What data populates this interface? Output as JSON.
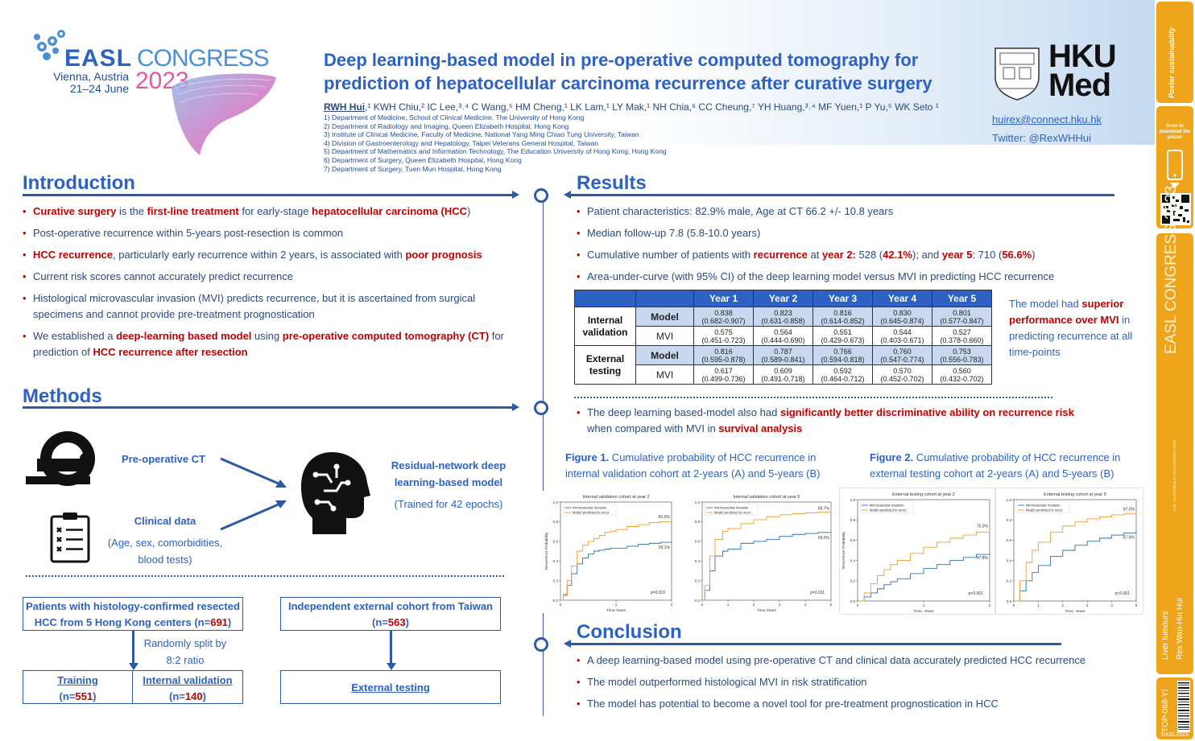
{
  "logo": {
    "brand": "EASL",
    "event": "CONGRESS",
    "city": "Vienna, Austria",
    "dates": "21–24 June",
    "year": "2023"
  },
  "title": "Deep learning-based model in pre-operative computed tomography for prediction of hepatocellular carcinoma recurrence after curative surgery",
  "authors": "RWH Hui,¹ KWH Chiu,² IC Lee,³⁴ C Wang,⁵ HM Cheng,¹ LK Lam,¹ LY Mak,¹ NH Chia,⁶ CC Cheung,⁷ YH Huang,³⁴ MF Yuen,¹ P Yu,⁵ WK Seto ¹",
  "first_author": "RWH Hui",
  "authors_rest": ",¹ KWH Chiu,² IC Lee,³˒⁴ C Wang,⁵ HM Cheng,¹ LK Lam,¹ LY Mak,¹ NH Chia,⁶ CC Cheung,⁷ YH Huang,³˒⁴ MF Yuen,¹ P Yu,⁵ WK Seto ¹",
  "affiliations": [
    "1) Department of Medicine, School of Clinical Medicine, The University of Hong Kong",
    "2) Department of Radiology and Imaging, Queen Elizabeth Hospital, Hong Kong",
    "3) Institute of Clinical Medicine, Faculty of Medicine, National Yang Ming Chiao Tung University, Taiwan",
    "4) Division of Gastroenterology and Hepatology, Taipei Veterans General Hospital, Taiwan",
    "5) Department of Mathematics and Information Technology, The Education University of Hong Kong, Hong Kong",
    "6) Department of Surgery, Queen Elizabeth Hospital, Hong Kong",
    "7) Department of Surgery, Tuen Mun Hospital, Hong Kong"
  ],
  "hku": {
    "line1": "HKU",
    "line2": "Med",
    "email": "huirex@connect.hku.hk",
    "twitter": "Twitter: @RexWHHui"
  },
  "introduction": {
    "heading": "Introduction",
    "b1": {
      "a": "Curative surgery",
      "b": " is the ",
      "c": "first-line treatment",
      "d": " for early-stage ",
      "e": "hepatocellular carcinoma (HCC",
      "f": ")"
    },
    "b2": "Post-operative recurrence within 5-years post-resection is common",
    "b3": {
      "a": "HCC recurrence",
      "b": ", particularly early recurrence within 2 years, is associated with ",
      "c": "poor prognosis"
    },
    "b4": "Current risk scores cannot accurately predict recurrence",
    "b5": "Histological microvascular invasion (MVI) predicts recurrence, but it is ascertained from surgical specimens and cannot provide pre-treatment prognostication",
    "b6": {
      "a": "We established a ",
      "b": "deep-learning based model",
      "c": " using ",
      "d": "pre-operative computed tomography (CT)",
      "e": " for prediction of ",
      "f": "HCC recurrence after resection"
    }
  },
  "methods": {
    "heading": "Methods",
    "ct": "Pre-operative CT",
    "clinical": "Clinical data",
    "clinical_detail_1": "(Age, sex, comorbidities,",
    "clinical_detail_2": "blood tests)",
    "model_1": "Residual-network deep",
    "model_2": "learning-based model",
    "model_3": "(Trained for 42 epochs)",
    "hk_box_1": "Patients with histology-confirmed resected",
    "hk_box_2a": "HCC from 5 Hong Kong centers (n=",
    "hk_box_2b": "691",
    "hk_box_2c": ")",
    "split_1": "Randomly split by",
    "split_2": "8:2 ratio",
    "training": "Training",
    "training_n_a": "(n=",
    "training_n_b": "551",
    "training_n_c": ")",
    "internal": "Internal validation",
    "internal_n_a": "(n=",
    "internal_n_b": "140",
    "internal_n_c": ")",
    "tw_box_1": "Independent external cohort from Taiwan",
    "tw_box_2a": "(n=",
    "tw_box_2b": "563",
    "tw_box_2c": ")",
    "external": "External testing"
  },
  "results": {
    "heading": "Results",
    "b1": "Patient characteristics: 82.9% male, Age at CT 66.2 +/- 10.8 years",
    "b2": "Median follow-up 7.8 (5.8-10.0 years)",
    "b3": {
      "a": "Cumulative number of patients with ",
      "b": "recurrence",
      "c": " at ",
      "d": "year 2:",
      "e": " 528 (",
      "f": "42.1%",
      "g": "); and ",
      "h": "year 5",
      "i": ": 710 (",
      "j": "56.6%",
      "k": ")"
    },
    "b4": "Area-under-curve (with 95% CI) of the deep learning model versus MVI in predicting HCC recurrence",
    "table": {
      "headers": [
        "Year 1",
        "Year 2",
        "Year 3",
        "Year 4",
        "Year 5"
      ],
      "internal_label_1": "Internal",
      "internal_label_2": "validation",
      "external_label_1": "External",
      "external_label_2": "testing",
      "model_label": "Model",
      "mvi_label": "MVI",
      "int_model": [
        [
          "0.838",
          "(0.682-0.907)"
        ],
        [
          "0.823",
          "(0.631-0.858)"
        ],
        [
          "0.816",
          "(0.614-0.852)"
        ],
        [
          "0.830",
          "(0.645-0.874)"
        ],
        [
          "0.801",
          "(0.577-0.847)"
        ]
      ],
      "int_mvi": [
        [
          "0.575",
          "(0.451-0.723)"
        ],
        [
          "0.564",
          "(0.444-0.690)"
        ],
        [
          "0.551",
          "(0.429-0.673)"
        ],
        [
          "0.544",
          "(0.403-0.671)"
        ],
        [
          "0.527",
          "(0.378-0.660)"
        ]
      ],
      "ext_model": [
        [
          "0.816",
          "(0.595-0.878)"
        ],
        [
          "0.787",
          "(0.589-0.841)"
        ],
        [
          "0.766",
          "(0.594-0.818)"
        ],
        [
          "0.760",
          "(0.547-0.774)"
        ],
        [
          "0.753",
          "(0.556-0.783)"
        ]
      ],
      "ext_mvi": [
        [
          "0.617",
          "(0.499-0.736)"
        ],
        [
          "0.609",
          "(0.491-0.718)"
        ],
        [
          "0.592",
          "(0.464-0.712)"
        ],
        [
          "0.570",
          "(0.452-0.702)"
        ],
        [
          "0.560",
          "(0.432-0.702)"
        ]
      ]
    },
    "superior": {
      "a": "The model had ",
      "b": "superior performance over MVI",
      "c": " in predicting recurrence at all time-points"
    },
    "b5": {
      "a": "The deep learning based-model also had ",
      "b": "significantly better discriminative ability on recurrence risk",
      "c": " when compared with MVI in ",
      "d": "survival analysis"
    },
    "fig1": {
      "label": "Figure 1.",
      "text": " Cumulative probability of HCC recurrence in internal validation cohort at 2-years (A) and 5-years (B)"
    },
    "fig2": {
      "label": "Figure 2.",
      "text": " Cumulative probability of HCC recurrence in external testing cohort at 2-years (A) and 5-years (B)"
    }
  },
  "conclusion": {
    "heading": "Conclusion",
    "b1": "A deep learning-based model using pre-operative CT and clinical data accurately predicted HCC recurrence",
    "b2": "The model outperformed histological MVI in risk stratification",
    "b3": "The model has potential to become a novel tool for pre-treatment prognostication in HCC"
  },
  "sidebar": {
    "poster_sust": "Poster sustainability",
    "scan": "Scan to download the poster",
    "congress": "EASL CONGRESS 2023",
    "tiny": "DOI: 10.1016/jhep.EASLCONGRESS.2023",
    "topic_1": "Liver tumours",
    "topic_2": "Rex Wan-Hin Hui",
    "code": "TOP-068-YI",
    "footer": "EASL2023"
  },
  "colors": {
    "accent": "#2d62c4",
    "highlight": "#c00000",
    "sidebar": "#eea51c",
    "mvi_line": "#2a6fb8",
    "model_line": "#f59a2c"
  },
  "chart_data": [
    {
      "type": "line",
      "title": "Internal validation cohort at year 2",
      "xlabel": "Time,Years",
      "ylabel": "Recurrence Probability",
      "xlim": [
        0,
        2
      ],
      "ylim": [
        0,
        1.0
      ],
      "xticks": [
        "0",
        "1",
        "2"
      ],
      "yticks": [
        "0.0",
        "0.2",
        "0.4",
        "0.6",
        "0.8",
        "1.0"
      ],
      "legend": [
        "microvascular invasion",
        "Model predicted to recur"
      ],
      "annotations": [
        "81.0%",
        "59.1%",
        "p=0.019"
      ],
      "series": [
        {
          "name": "microvascular invasion",
          "x": [
            0,
            0.05,
            0.12,
            0.2,
            0.3,
            0.4,
            0.5,
            0.6,
            0.7,
            0.8,
            0.9,
            1.0,
            1.2,
            1.4,
            1.6,
            1.8,
            2.0
          ],
          "y": [
            0,
            0.05,
            0.15,
            0.27,
            0.37,
            0.43,
            0.47,
            0.5,
            0.51,
            0.52,
            0.53,
            0.53,
            0.55,
            0.57,
            0.58,
            0.59,
            0.591
          ]
        },
        {
          "name": "Model predicted to recur",
          "x": [
            0,
            0.05,
            0.12,
            0.2,
            0.3,
            0.4,
            0.5,
            0.6,
            0.7,
            0.8,
            0.9,
            1.0,
            1.2,
            1.4,
            1.6,
            1.8,
            2.0
          ],
          "y": [
            0,
            0.06,
            0.2,
            0.35,
            0.5,
            0.56,
            0.6,
            0.63,
            0.66,
            0.69,
            0.7,
            0.72,
            0.75,
            0.77,
            0.79,
            0.8,
            0.81
          ]
        }
      ]
    },
    {
      "type": "line",
      "title": "Internal validation cohort at year 5",
      "xlabel": "Time,Years",
      "ylabel": "",
      "xlim": [
        0,
        5
      ],
      "ylim": [
        0,
        1.0
      ],
      "xticks": [
        "0",
        "1",
        "2",
        "3",
        "4",
        "5"
      ],
      "yticks": [
        "0.0",
        "0.2",
        "0.4",
        "0.6",
        "0.8",
        "1.0"
      ],
      "legend": [
        "microvascular invasion",
        "Model predicted to recur"
      ],
      "annotations": [
        "89.7%",
        "69.0%",
        "p=0.011"
      ],
      "series": [
        {
          "name": "microvascular invasion",
          "x": [
            0,
            0.1,
            0.3,
            0.5,
            0.8,
            1.0,
            1.5,
            2.0,
            2.5,
            3.0,
            3.5,
            4.0,
            4.5,
            5.0
          ],
          "y": [
            0,
            0.1,
            0.3,
            0.45,
            0.5,
            0.52,
            0.58,
            0.6,
            0.62,
            0.65,
            0.67,
            0.68,
            0.69,
            0.69
          ]
        },
        {
          "name": "Model predicted to recur",
          "x": [
            0,
            0.1,
            0.3,
            0.5,
            0.8,
            1.0,
            1.5,
            2.0,
            2.5,
            3.0,
            3.5,
            4.0,
            4.5,
            5.0
          ],
          "y": [
            0,
            0.15,
            0.45,
            0.62,
            0.7,
            0.73,
            0.78,
            0.82,
            0.85,
            0.87,
            0.88,
            0.89,
            0.897,
            0.897
          ]
        }
      ]
    },
    {
      "type": "line",
      "title": "External testing cohort at year 2",
      "xlabel": "Time, Years",
      "ylabel": "Recurrence Probability",
      "xlim": [
        0,
        2
      ],
      "ylim": [
        0,
        1.0
      ],
      "xticks": [
        "0",
        "1",
        "2"
      ],
      "yticks": [
        "0.0",
        "0.2",
        "0.4",
        "0.6",
        "0.8",
        "1.0"
      ],
      "legend": [
        "Microvascular Invasion",
        "Model predicted to recur"
      ],
      "annotations": [
        "70.3%",
        "47.8%",
        "p<0.001"
      ],
      "series": [
        {
          "name": "Microvascular Invasion",
          "x": [
            0,
            0.1,
            0.2,
            0.3,
            0.4,
            0.5,
            0.6,
            0.8,
            1.0,
            1.2,
            1.4,
            1.6,
            1.8,
            2.0
          ],
          "y": [
            0,
            0.04,
            0.08,
            0.12,
            0.16,
            0.19,
            0.22,
            0.27,
            0.32,
            0.36,
            0.4,
            0.43,
            0.46,
            0.478
          ]
        },
        {
          "name": "Model predicted to recur",
          "x": [
            0,
            0.1,
            0.2,
            0.3,
            0.4,
            0.5,
            0.6,
            0.8,
            1.0,
            1.2,
            1.4,
            1.6,
            1.8,
            2.0
          ],
          "y": [
            0,
            0.08,
            0.17,
            0.25,
            0.31,
            0.36,
            0.4,
            0.47,
            0.53,
            0.58,
            0.62,
            0.65,
            0.68,
            0.703
          ]
        }
      ]
    },
    {
      "type": "line",
      "title": "External testing cohort at year 5",
      "xlabel": "Time, Years",
      "ylabel": "",
      "xlim": [
        0,
        5
      ],
      "ylim": [
        0,
        1.0
      ],
      "xticks": [
        "0",
        "1",
        "2",
        "3",
        "4",
        "5"
      ],
      "yticks": [
        "0.0",
        "0.2",
        "0.4",
        "0.6",
        "0.8",
        "1.0"
      ],
      "legend": [
        "Microvascular Invasion",
        "Model predicted to recur"
      ],
      "annotations": [
        "87.0%",
        "67.9%",
        "p<0.001"
      ],
      "series": [
        {
          "name": "Microvascular Invasion",
          "x": [
            0,
            0.25,
            0.5,
            0.75,
            1.0,
            1.5,
            2.0,
            2.5,
            3.0,
            3.5,
            4.0,
            4.5,
            5.0
          ],
          "y": [
            0,
            0.1,
            0.2,
            0.28,
            0.35,
            0.44,
            0.5,
            0.55,
            0.59,
            0.62,
            0.65,
            0.67,
            0.679
          ]
        },
        {
          "name": "Model predicted to recur",
          "x": [
            0,
            0.25,
            0.5,
            0.75,
            1.0,
            1.5,
            2.0,
            2.5,
            3.0,
            3.5,
            4.0,
            4.5,
            5.0
          ],
          "y": [
            0,
            0.2,
            0.38,
            0.5,
            0.58,
            0.68,
            0.74,
            0.78,
            0.81,
            0.83,
            0.85,
            0.86,
            0.87
          ]
        }
      ]
    }
  ]
}
